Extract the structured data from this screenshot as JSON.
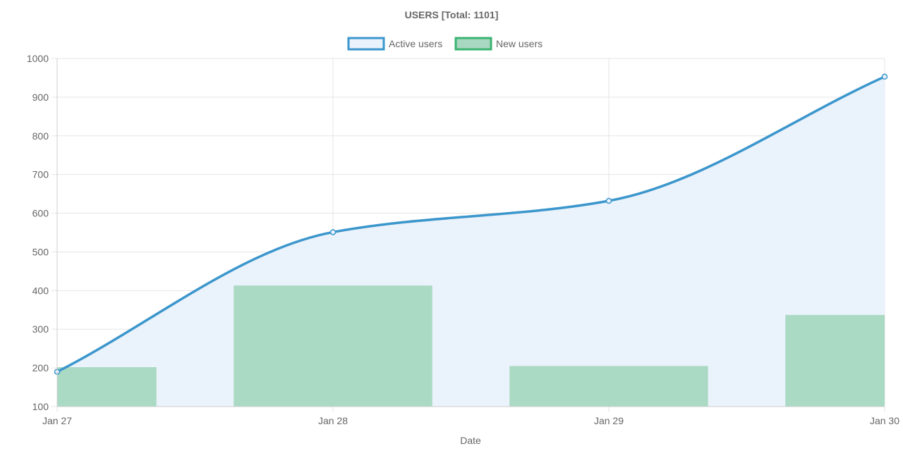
{
  "chart_data": {
    "type": "line",
    "title": "USERS [Total: 1101]",
    "xlabel": "Date",
    "ylabel": "",
    "categories": [
      "Jan 27",
      "Jan 28",
      "Jan 29",
      "Jan 30"
    ],
    "ylim": [
      100,
      1000
    ],
    "yticks": [
      100,
      200,
      300,
      400,
      500,
      600,
      700,
      800,
      900,
      1000
    ],
    "grid": true,
    "legend": "top",
    "series": [
      {
        "name": "Active users",
        "kind": "area-line",
        "values": [
          190,
          551,
          632,
          953
        ],
        "color": "#3b96cc",
        "fill": "#eaf2fb"
      },
      {
        "name": "New users",
        "kind": "bar",
        "values": [
          202,
          413,
          205,
          337
        ],
        "color": "#a8d8c1",
        "border": "#3cb371"
      }
    ]
  }
}
